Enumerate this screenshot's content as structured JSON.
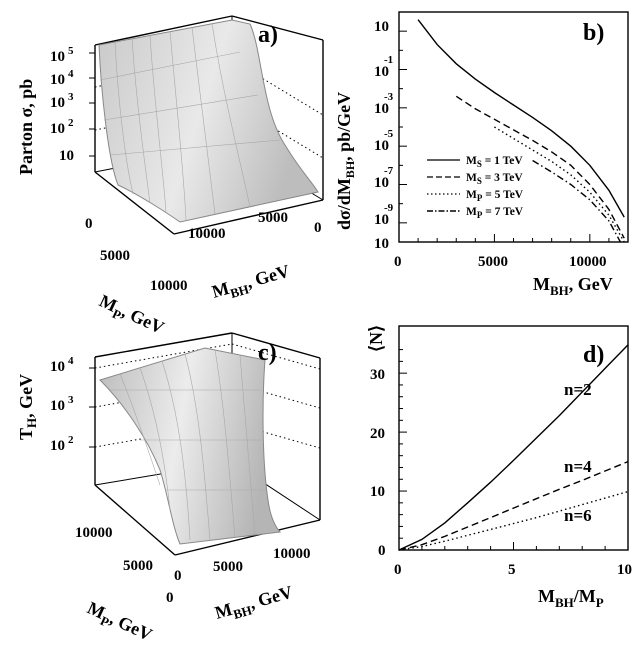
{
  "chart_data": [
    {
      "panel": "a)",
      "type": "surface",
      "zlabel": "Parton σ, pb",
      "xlabel": "M_P, GeV",
      "ylabel": "M_BH, GeV",
      "ztick_labels": [
        "10",
        "10",
        "10",
        "10",
        "10"
      ],
      "ztick_exponents": [
        "5",
        "4",
        "3",
        "2",
        ""
      ],
      "xtick_labels": [
        "0",
        "5000",
        "10000"
      ],
      "ytick_labels": [
        "10000",
        "5000",
        "0"
      ]
    },
    {
      "panel": "b)",
      "type": "line",
      "ylabel": "dσ/dM_BH, pb/GeV",
      "xlabel": "M_BH, GeV",
      "xlim": [
        0,
        12000
      ],
      "ylim_log10": [
        -10,
        2
      ],
      "xtick_labels": [
        "0",
        "5000",
        "10000"
      ],
      "ytick_labels": [
        "10",
        "10",
        "10",
        "10",
        "10",
        "10"
      ],
      "ytick_exponents": [
        "",
        "-1",
        "-3",
        "-5",
        "-7",
        "-9"
      ],
      "series": [
        {
          "name": "M_S = 1 TeV",
          "style": "solid",
          "x": [
            1000,
            2000,
            3000,
            4000,
            5000,
            6000,
            7000,
            8000,
            9000,
            10000,
            11000,
            11800
          ],
          "log10y": [
            1.6,
            0.3,
            -0.7,
            -1.5,
            -2.2,
            -2.85,
            -3.5,
            -4.2,
            -5.0,
            -6.0,
            -7.3,
            -8.7
          ]
        },
        {
          "name": "M_S = 3 TeV",
          "style": "dashed",
          "x": [
            3000,
            4000,
            5000,
            6000,
            7000,
            8000,
            9000,
            10000,
            11000,
            11800
          ],
          "log10y": [
            -2.4,
            -3.05,
            -3.6,
            -4.15,
            -4.7,
            -5.3,
            -6.0,
            -7.0,
            -8.3,
            -9.8
          ]
        },
        {
          "name": "M_P = 5 TeV",
          "style": "dotted",
          "x": [
            5000,
            6000,
            7000,
            8000,
            9000,
            10000,
            11000,
            11800
          ],
          "log10y": [
            -4.0,
            -4.6,
            -5.2,
            -5.8,
            -6.5,
            -7.4,
            -8.6,
            -10.0
          ]
        },
        {
          "name": "M_P = 7 TeV",
          "style": "dashdot",
          "x": [
            7000,
            8000,
            9000,
            10000,
            11000,
            11600
          ],
          "log10y": [
            -5.75,
            -6.35,
            -7.0,
            -7.8,
            -8.9,
            -10.0
          ]
        }
      ],
      "legend": {
        "placement": "bottom-left",
        "entries": [
          {
            "main": "M",
            "sub": "S",
            "rest": " = 1 TeV",
            "style": "solid"
          },
          {
            "main": "M",
            "sub": "S",
            "rest": " = 3 TeV",
            "style": "dashed"
          },
          {
            "main": "M",
            "sub": "P",
            "rest": " = 5 TeV",
            "style": "dotted"
          },
          {
            "main": "M",
            "sub": "P",
            "rest": " = 7 TeV",
            "style": "dashdot"
          }
        ]
      }
    },
    {
      "panel": "c)",
      "type": "surface",
      "zlabel": "T_H, GeV",
      "xlabel": "M_P, GeV",
      "ylabel": "M_BH, GeV",
      "ztick_labels": [
        "10",
        "10",
        "10"
      ],
      "ztick_exponents": [
        "4",
        "3",
        "2"
      ],
      "xtick_labels": [
        "10000",
        "5000",
        "0"
      ],
      "ytick_labels": [
        "0",
        "5000",
        "10000"
      ]
    },
    {
      "panel": "d)",
      "type": "line",
      "ylabel": "⟨N⟩",
      "xlabel": "M_BH/M_P",
      "xlim": [
        0,
        10
      ],
      "ylim": [
        0,
        38
      ],
      "xtick_labels": [
        "0",
        "5",
        "10"
      ],
      "ytick_labels": [
        "0",
        "10",
        "20",
        "30"
      ],
      "series": [
        {
          "name": "n=2",
          "style": "solid",
          "x": [
            0,
            1,
            2,
            3,
            4,
            5,
            6,
            7,
            8,
            9,
            10
          ],
          "y": [
            0,
            1.8,
            4.6,
            8.0,
            11.5,
            15.2,
            19.0,
            22.8,
            26.8,
            30.8,
            34.8
          ]
        },
        {
          "name": "n=4",
          "style": "dashed",
          "x": [
            0,
            1,
            2,
            3,
            4,
            5,
            6,
            7,
            8,
            9,
            10
          ],
          "y": [
            0,
            0.9,
            2.3,
            3.9,
            5.5,
            7.1,
            8.7,
            10.3,
            11.8,
            13.4,
            15.0
          ]
        },
        {
          "name": "n=6",
          "style": "dotted",
          "x": [
            0,
            1,
            2,
            3,
            4,
            5,
            6,
            7,
            8,
            9,
            10
          ],
          "y": [
            0,
            0.6,
            1.5,
            2.5,
            3.5,
            4.5,
            5.5,
            6.6,
            7.7,
            8.8,
            9.9
          ]
        }
      ],
      "labels": [
        "n=2",
        "n=4",
        "n=6"
      ]
    }
  ]
}
